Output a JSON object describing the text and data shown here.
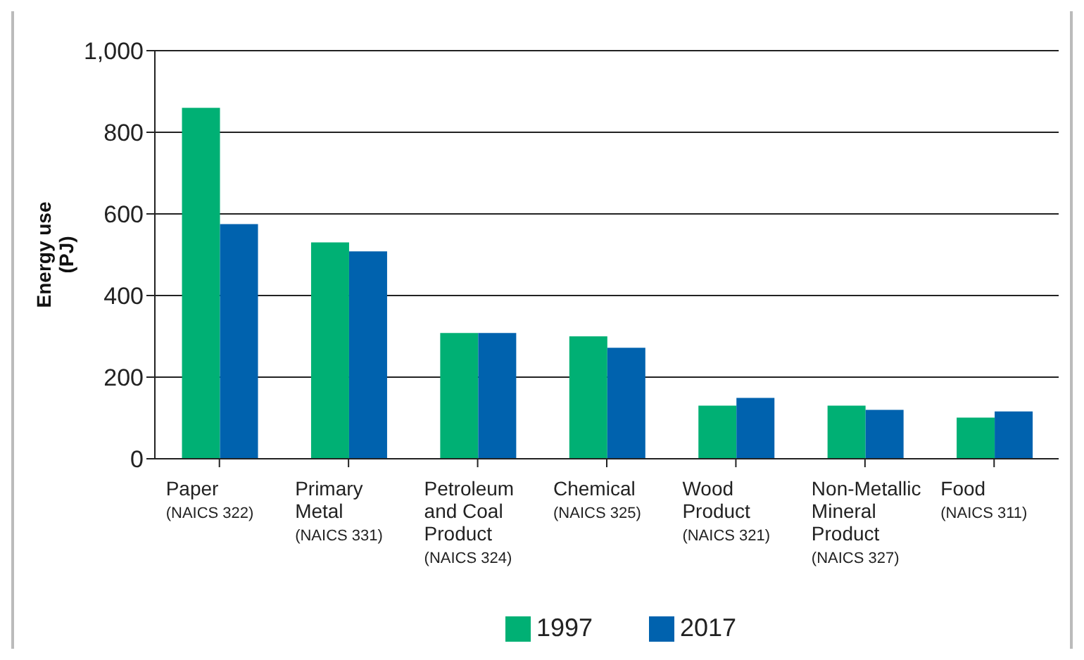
{
  "chart_data": {
    "type": "bar",
    "ylabel": "Energy use\n(PJ)",
    "categories": [
      "Paper\n(NAICS 322)",
      "Primary\nMetal\n(NAICS 331)",
      "Petroleum\nand Coal\nProduct\n(NAICS 324)",
      "Chemical\n(NAICS 325)",
      "Wood\nProduct\n(NAICS 321)",
      "Non-Metallic\nMineral\nProduct\n(NAICS 327)",
      "Food\n(NAICS 311)"
    ],
    "series": [
      {
        "name": "1997",
        "color": "#00b074",
        "values": [
          860,
          530,
          308,
          300,
          130,
          130,
          101
        ]
      },
      {
        "name": "2017",
        "color": "#0062ae",
        "values": [
          575,
          508,
          308,
          272,
          149,
          120,
          116
        ]
      }
    ],
    "ylim": [
      0,
      1000
    ],
    "yticks": [
      0,
      {
        "value": 200,
        "label": "200"
      },
      {
        "value": 400,
        "label": "400"
      },
      {
        "value": 600,
        "label": "600"
      },
      {
        "value": 800,
        "label": "800"
      },
      {
        "value": 1000,
        "label": "1,000"
      }
    ],
    "grid": "y",
    "legend": "bottom"
  }
}
